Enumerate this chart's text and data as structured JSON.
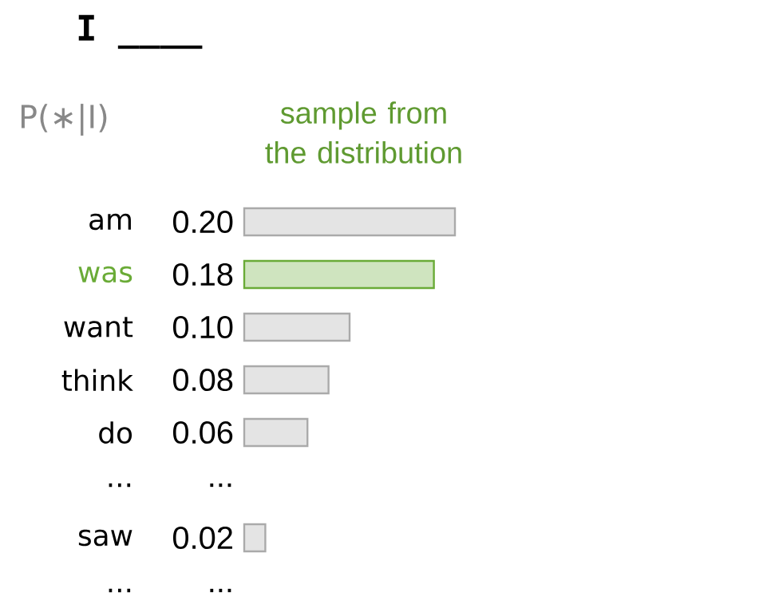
{
  "chart_data": {
    "type": "bar",
    "orientation": "horizontal",
    "title": "I ____",
    "subtitle": "P(∗|I)",
    "annotations": [
      "sample from the distribution"
    ],
    "categories": [
      "am",
      "was",
      "want",
      "think",
      "do",
      "...",
      "saw",
      "..."
    ],
    "values": [
      0.2,
      0.18,
      0.1,
      0.08,
      0.06,
      null,
      0.02,
      null
    ],
    "value_labels": [
      "0.20",
      "0.18",
      "0.10",
      "0.08",
      "0.06",
      "...",
      "0.02",
      "..."
    ],
    "colors": [
      "#aaaaaa",
      "#6aab37",
      "#aaaaaa",
      "#aaaaaa",
      "#aaaaaa",
      "#aaaaaa",
      "#aaaaaa",
      "#aaaaaa"
    ]
  }
}
